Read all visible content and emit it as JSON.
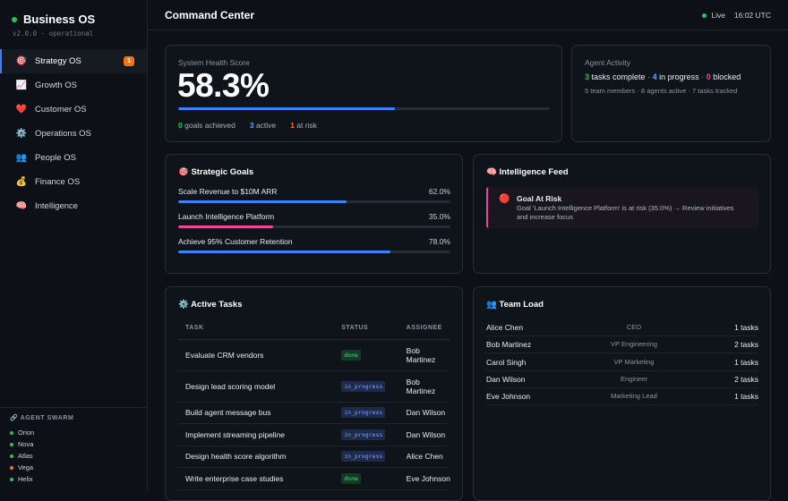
{
  "brand": {
    "title": "Business OS",
    "subtitle": "v2.0.0 · operational"
  },
  "sidebar": {
    "items": [
      {
        "icon": "🎯",
        "icon_name": "target-icon",
        "label": "Strategy OS",
        "badge": "1",
        "active": true
      },
      {
        "icon": "📈",
        "icon_name": "chart-up-icon",
        "label": "Growth OS"
      },
      {
        "icon": "❤️",
        "icon_name": "heart-icon",
        "label": "Customer OS"
      },
      {
        "icon": "⚙️",
        "icon_name": "gear-icon",
        "label": "Operations OS"
      },
      {
        "icon": "👥",
        "icon_name": "people-icon",
        "label": "People OS"
      },
      {
        "icon": "💰",
        "icon_name": "money-bag-icon",
        "label": "Finance OS"
      },
      {
        "icon": "🧠",
        "icon_name": "brain-icon",
        "label": "Intelligence"
      }
    ]
  },
  "swarm": {
    "title": "🔗 AGENT SWARM",
    "agents": [
      {
        "name": "Orion",
        "color": "#22c55e"
      },
      {
        "name": "Nova",
        "color": "#22c55e"
      },
      {
        "name": "Atlas",
        "color": "#22c55e"
      },
      {
        "name": "Vega",
        "color": "#f97316"
      },
      {
        "name": "Helix",
        "color": "#22c55e"
      }
    ]
  },
  "header": {
    "title": "Command Center",
    "live": "Live",
    "time": "16:02 UTC"
  },
  "health": {
    "label": "System Health Score",
    "score": "58.3%",
    "fraction": 0.583,
    "stats": [
      {
        "value": "0",
        "label": "goals achieved",
        "color": "#22c55e"
      },
      {
        "value": "3",
        "label": "active",
        "color": "#60a5fa"
      },
      {
        "value": "1",
        "label": "at risk",
        "color": "#f97316"
      }
    ]
  },
  "activity": {
    "label": "Agent Activity",
    "complete": "3",
    "complete_label": "tasks complete",
    "sep1": "·",
    "progress": "4",
    "progress_label": "in progress",
    "sep2": "·",
    "blocked": "0",
    "blocked_label": "blocked",
    "summary": "5 team members · 8 agents active · 7 tasks tracked"
  },
  "goals": {
    "title": "🎯 Strategic Goals",
    "items": [
      {
        "name": "Scale Revenue to $10M ARR",
        "pct": "62.0%",
        "fraction": 0.62,
        "color": "#3b82f6"
      },
      {
        "name": "Launch Intelligence Platform",
        "pct": "35.0%",
        "fraction": 0.35,
        "color": "#ec4899"
      },
      {
        "name": "Achieve 95% Customer Retention",
        "pct": "78.0%",
        "fraction": 0.78,
        "color": "#3b82f6"
      }
    ]
  },
  "feed": {
    "title": "🧠 Intelligence Feed",
    "alert": {
      "icon": "🔴",
      "title": "Goal At Risk",
      "body": "Goal 'Launch Intelligence Platform' is at risk (35.0%) → Review initiatives and increase focus"
    }
  },
  "tasks": {
    "title": "⚙️ Active Tasks",
    "columns": [
      "TASK",
      "STATUS",
      "ASSIGNEE"
    ],
    "rows": [
      {
        "task": "Evaluate CRM vendors",
        "status": "done",
        "assignee": "Bob Martinez"
      },
      {
        "task": "Design lead scoring model",
        "status": "in_progress",
        "assignee": "Bob Martinez"
      },
      {
        "task": "Build agent message bus",
        "status": "in_progress",
        "assignee": "Dan Wilson"
      },
      {
        "task": "Implement streaming pipeline",
        "status": "in_progress",
        "assignee": "Dan Wilson"
      },
      {
        "task": "Design health score algorithm",
        "status": "in_progress",
        "assignee": "Alice Chen"
      },
      {
        "task": "Write enterprise case studies",
        "status": "done",
        "assignee": "Eve Johnson"
      }
    ]
  },
  "team": {
    "title": "👥 Team Load",
    "rows": [
      {
        "name": "Alice Chen",
        "role": "CEO",
        "tasks": "1 tasks"
      },
      {
        "name": "Bob Martinez",
        "role": "VP Engineering",
        "tasks": "2 tasks"
      },
      {
        "name": "Carol Singh",
        "role": "VP Marketing",
        "tasks": "1 tasks"
      },
      {
        "name": "Dan Wilson",
        "role": "Engineer",
        "tasks": "2 tasks"
      },
      {
        "name": "Eve Johnson",
        "role": "Marketing Lead",
        "tasks": "1 tasks"
      }
    ]
  }
}
